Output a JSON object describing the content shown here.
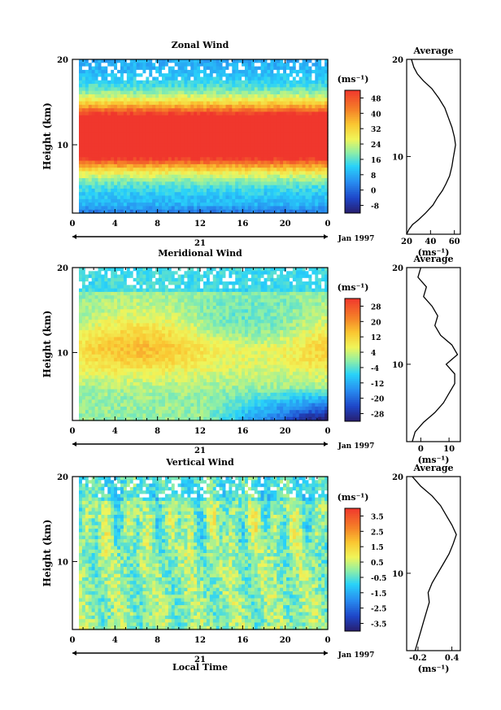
{
  "chart_data": [
    {
      "type": "heatmap",
      "title": "Zonal Wind",
      "ylabel": "Height (km)",
      "unit_label": "(ms⁻¹)",
      "ylim": [
        2,
        20
      ],
      "xlim": [
        0,
        24
      ],
      "x_ticks": [
        "0",
        "4",
        "8",
        "12",
        "16",
        "20",
        "0"
      ],
      "y_ticks": [
        "20",
        "10"
      ],
      "date_day": "21",
      "date_label": "Jan 1997",
      "colorbar": {
        "ticks": [
          "48",
          "40",
          "32",
          "24",
          "16",
          "8",
          "0",
          "-8"
        ],
        "min": -12,
        "max": 52
      },
      "field": {
        "kind": "zonal",
        "jet_center_km": 11,
        "jet_half_width_km": 3.5,
        "peak_ms": 60
      },
      "profile": {
        "title": "Average",
        "xlabel": "(ms⁻¹)",
        "x_ticks": [
          "20",
          "40",
          "60"
        ],
        "xlim": [
          20,
          65
        ],
        "y_ticks": [
          "20",
          "10"
        ],
        "points": [
          [
            20,
            2
          ],
          [
            22,
            2.5
          ],
          [
            25,
            3
          ],
          [
            30,
            3.5
          ],
          [
            36,
            4.2
          ],
          [
            42,
            5
          ],
          [
            46,
            5.8
          ],
          [
            50,
            6.5
          ],
          [
            53,
            7.2
          ],
          [
            56,
            8
          ],
          [
            58,
            9
          ],
          [
            59,
            9.8
          ],
          [
            60,
            10.5
          ],
          [
            61,
            11.2
          ],
          [
            60,
            12
          ],
          [
            58,
            13
          ],
          [
            55,
            14
          ],
          [
            52,
            15
          ],
          [
            47,
            16
          ],
          [
            41,
            17
          ],
          [
            34,
            17.8
          ],
          [
            29,
            18.5
          ],
          [
            26,
            19.2
          ],
          [
            24,
            20
          ]
        ]
      }
    },
    {
      "type": "heatmap",
      "title": "Meridional Wind",
      "ylabel": "Height (km)",
      "unit_label": "(ms⁻¹)",
      "ylim": [
        2,
        20
      ],
      "xlim": [
        0,
        24
      ],
      "x_ticks": [
        "0",
        "4",
        "8",
        "12",
        "16",
        "20",
        "0"
      ],
      "y_ticks": [
        "20",
        "10"
      ],
      "date_day": "21",
      "date_label": "Jan 1997",
      "colorbar": {
        "ticks": [
          "28",
          "20",
          "12",
          "4",
          "-4",
          "-12",
          "-20",
          "-28"
        ],
        "min": -32,
        "max": 32
      },
      "field": {
        "kind": "meridional"
      },
      "profile": {
        "title": "Average",
        "xlabel": "(ms⁻¹)",
        "x_ticks": [
          "0",
          "10"
        ],
        "xlim": [
          -5,
          14
        ],
        "y_ticks": [
          "20",
          "10"
        ],
        "points": [
          [
            -3,
            2
          ],
          [
            -2,
            3
          ],
          [
            1,
            4
          ],
          [
            5,
            5
          ],
          [
            8,
            6
          ],
          [
            10,
            7
          ],
          [
            12,
            8
          ],
          [
            12,
            9
          ],
          [
            9,
            10
          ],
          [
            11,
            10.5
          ],
          [
            13,
            11
          ],
          [
            11,
            12
          ],
          [
            7,
            13
          ],
          [
            5,
            14
          ],
          [
            6,
            15
          ],
          [
            4,
            16
          ],
          [
            1,
            17
          ],
          [
            2,
            18
          ],
          [
            -1,
            19
          ],
          [
            0,
            20
          ]
        ]
      }
    },
    {
      "type": "heatmap",
      "title": "Vertical Wind",
      "ylabel": "Height (km)",
      "xlabel": "Local Time",
      "unit_label": "(ms⁻¹)",
      "ylim": [
        2,
        20
      ],
      "xlim": [
        0,
        24
      ],
      "x_ticks": [
        "0",
        "4",
        "8",
        "12",
        "16",
        "20",
        "0"
      ],
      "y_ticks": [
        "20",
        "10"
      ],
      "date_day": "21",
      "date_label": "Jan 1997",
      "colorbar": {
        "ticks": [
          "3.5",
          "2.5",
          "1.5",
          "0.5",
          "-0.5",
          "-1.5",
          "-2.5",
          "-3.5"
        ],
        "min": -4,
        "max": 4
      },
      "field": {
        "kind": "vertical"
      },
      "profile": {
        "title": "Average",
        "xlabel": "(ms⁻¹)",
        "x_ticks": [
          "-0.2",
          "0.4"
        ],
        "xlim": [
          -0.4,
          0.55
        ],
        "y_ticks": [
          "20",
          "10"
        ],
        "points": [
          [
            -0.25,
            2
          ],
          [
            -0.2,
            3
          ],
          [
            -0.15,
            4
          ],
          [
            -0.1,
            5
          ],
          [
            -0.05,
            6
          ],
          [
            0,
            7
          ],
          [
            -0.02,
            8
          ],
          [
            0.05,
            9
          ],
          [
            0.15,
            10
          ],
          [
            0.25,
            11
          ],
          [
            0.35,
            12
          ],
          [
            0.42,
            13
          ],
          [
            0.48,
            14
          ],
          [
            0.4,
            15
          ],
          [
            0.3,
            16
          ],
          [
            0.2,
            17
          ],
          [
            0.05,
            18
          ],
          [
            -0.15,
            19
          ],
          [
            -0.3,
            20
          ]
        ]
      }
    }
  ]
}
